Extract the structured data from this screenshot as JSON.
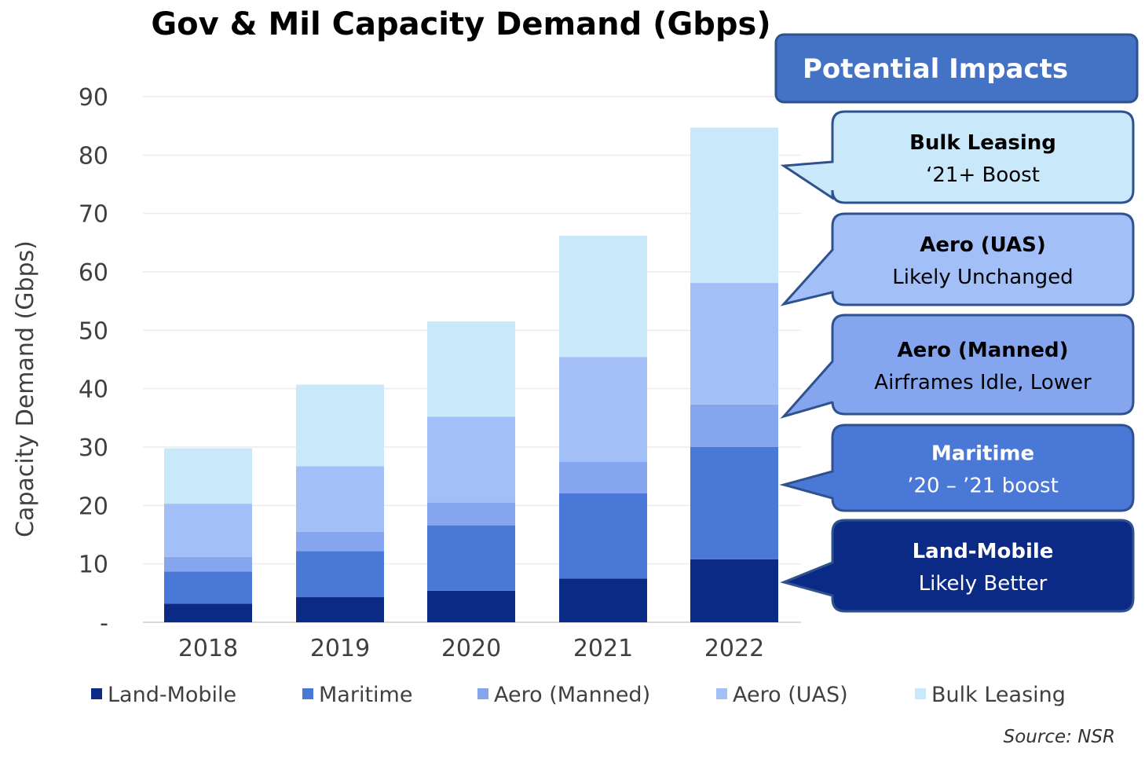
{
  "chart_data": {
    "type": "bar",
    "stacked": true,
    "title": "Gov & Mil Capacity Demand (Gbps)",
    "ylabel": "Capacity Demand (Gbps)",
    "xlabel": "",
    "ylim": [
      0,
      90
    ],
    "yticks": [
      "-",
      "10",
      "20",
      "30",
      "40",
      "50",
      "60",
      "70",
      "80",
      "90"
    ],
    "grid": true,
    "legend_position": "bottom",
    "categories": [
      "2018",
      "2019",
      "2020",
      "2021",
      "2022"
    ],
    "series": [
      {
        "name": "Land-Mobile",
        "color": "#0b2a86",
        "values": [
          3.2,
          4.3,
          5.4,
          7.5,
          10.8
        ]
      },
      {
        "name": "Maritime",
        "color": "#4a78d6",
        "values": [
          5.5,
          7.9,
          11.2,
          14.6,
          19.2
        ]
      },
      {
        "name": "Aero (Manned)",
        "color": "#85a6ee",
        "values": [
          2.5,
          3.3,
          3.9,
          5.4,
          7.3
        ]
      },
      {
        "name": "Aero (UAS)",
        "color": "#a3bff7",
        "values": [
          9.1,
          11.2,
          14.7,
          17.9,
          20.8
        ]
      },
      {
        "name": "Bulk Leasing",
        "color": "#c9e8fa",
        "values": [
          9.5,
          14.0,
          16.3,
          20.8,
          26.6
        ]
      }
    ]
  },
  "impacts": {
    "header": "Potential Impacts",
    "header_color": "#4472c4",
    "callouts": [
      {
        "title": "Bulk Leasing",
        "sub": "‘21+ Boost",
        "fill": "#c9e8fa",
        "text_color": "#000000"
      },
      {
        "title": "Aero (UAS)",
        "sub": "Likely Unchanged",
        "fill": "#a3bff7",
        "text_color": "#000000"
      },
      {
        "title": "Aero (Manned)",
        "sub": "Airframes Idle, Lower",
        "fill": "#85a6ee",
        "text_color": "#000000"
      },
      {
        "title": "Maritime",
        "sub": "’20 – ’21 boost",
        "fill": "#4a78d6",
        "text_color": "#ffffff"
      },
      {
        "title": "Land-Mobile",
        "sub": "Likely Better",
        "fill": "#0b2a86",
        "text_color": "#ffffff"
      }
    ]
  },
  "source": "Source: NSR"
}
